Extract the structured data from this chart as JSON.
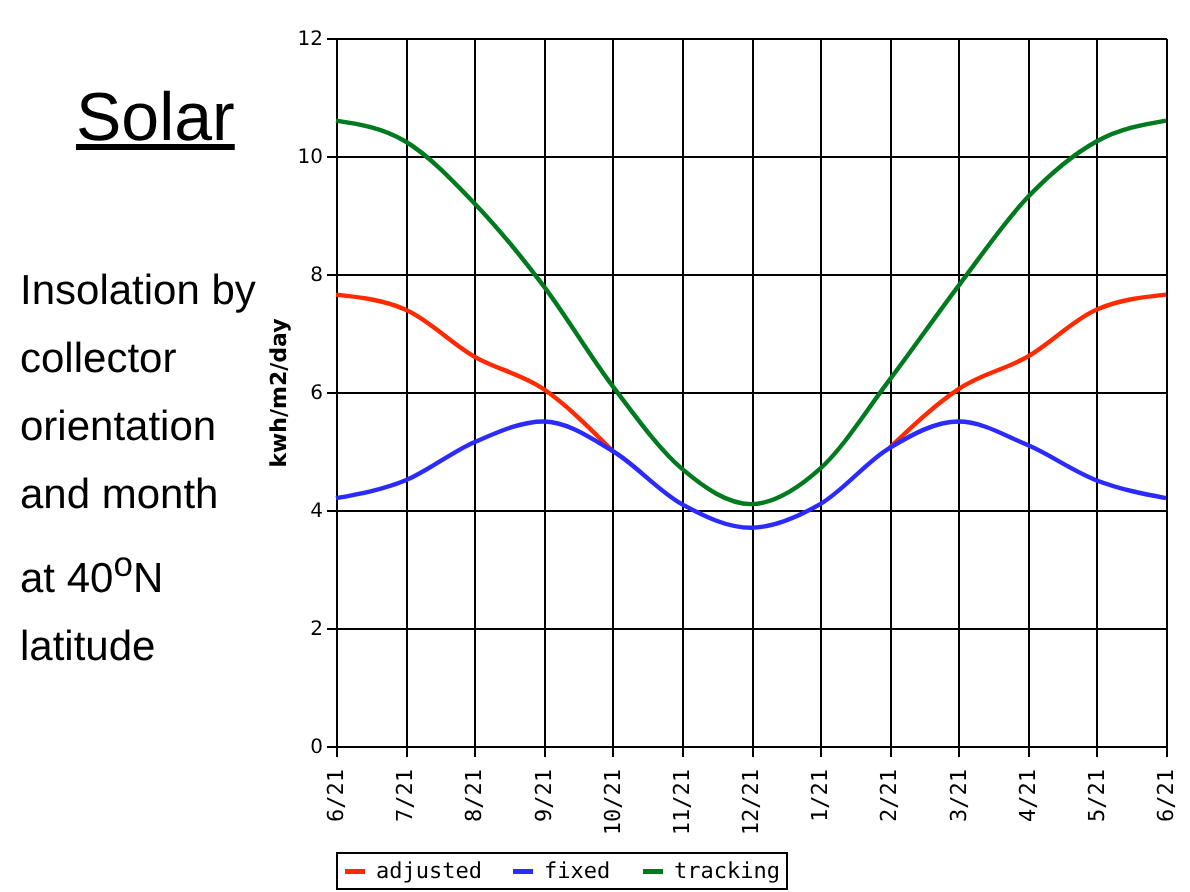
{
  "chart_data": {
    "type": "line",
    "title": "Solar",
    "subtitle": "Insolation by collector orientation and month at 40$^{o}$N latitude",
    "ylabel": "kwh/m2/day",
    "categories": [
      "6/21",
      "7/21",
      "8/21",
      "9/21",
      "10/21",
      "11/21",
      "12/21",
      "1/21",
      "2/21",
      "3/21",
      "4/21",
      "5/21",
      "6/21"
    ],
    "series": [
      {
        "name": "adjusted",
        "color": "#ff2a00",
        "values": [
          7.65,
          7.4,
          6.6,
          6.05,
          5.0,
          null,
          null,
          null,
          5.05,
          6.05,
          6.6,
          7.4,
          7.65
        ]
      },
      {
        "name": "fixed",
        "color": "#2b2bff",
        "values": [
          4.2,
          4.5,
          5.15,
          5.5,
          5.0,
          4.1,
          3.7,
          4.1,
          5.05,
          5.5,
          5.1,
          4.5,
          4.2
        ]
      },
      {
        "name": "tracking",
        "color": "#007a1e",
        "values": [
          10.6,
          10.25,
          9.2,
          7.8,
          6.1,
          4.7,
          4.1,
          4.7,
          6.2,
          7.8,
          9.3,
          10.25,
          10.6
        ]
      }
    ],
    "ylim": [
      0,
      12
    ],
    "yticks": [
      0,
      2,
      4,
      6,
      8,
      10,
      12
    ],
    "grid": true,
    "legend": "bottom",
    "marker": "none",
    "line_style": "solid"
  }
}
